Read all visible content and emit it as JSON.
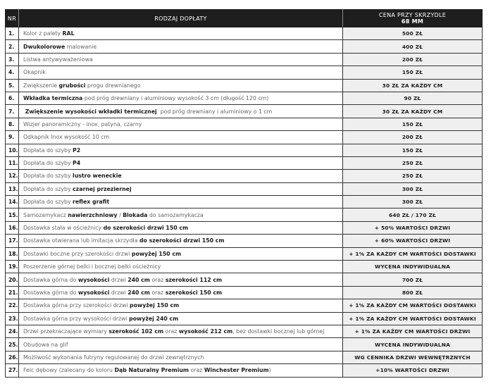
{
  "header": {
    "nr": "NR",
    "type": "RODZAJ DOPŁATY",
    "price_line1": "CENA PRZY SKRZYDLE",
    "price_line2": "68 MM"
  },
  "rows": [
    {
      "nr": "1.",
      "desc": [
        {
          "t": "Kolor z palety "
        },
        {
          "t": "RAL",
          "b": true
        }
      ],
      "price": "500 ZŁ"
    },
    {
      "nr": "2.",
      "desc": [
        {
          "t": "Dwukolorowe",
          "b": true
        },
        {
          "t": " malowanie"
        }
      ],
      "price": "400 ZŁ"
    },
    {
      "nr": "3.",
      "desc": [
        {
          "t": "Listwa antywyważeniowa"
        }
      ],
      "price": "200 ZŁ"
    },
    {
      "nr": "4.",
      "desc": [
        {
          "t": "Okapnik"
        }
      ],
      "price": "150 ZŁ"
    },
    {
      "nr": "5.",
      "desc": [
        {
          "t": "Zwiększenie "
        },
        {
          "t": "grubości",
          "b": true
        },
        {
          "t": " progu drewnianego"
        }
      ],
      "price": "30 ZŁ ZA KAŻDY CM"
    },
    {
      "nr": "6.",
      "desc": [
        {
          "t": "Wkładka termiczna",
          "b": true
        },
        {
          "t": " pod próg drewniany i aluminiowy wysokość 3 cm (długość 120 cm)"
        }
      ],
      "price": "90 ZŁ"
    },
    {
      "nr": "7.",
      "desc": [
        {
          "t": " Zwiększenie wysokości wkładki termicznej",
          "b": true
        },
        {
          "t": "  pod próg drewniany i aluminiowy o 1 cm"
        }
      ],
      "price": "30 ZŁ ZA KAŻDY CM"
    },
    {
      "nr": "8.",
      "desc": [
        {
          "t": "Wizjer panoramiczny - inox, patyna, czarny"
        }
      ],
      "price": "150 ZŁ"
    },
    {
      "nr": "9.",
      "desc": [
        {
          "t": "Odkapnik Inox wysokość 10 cm"
        }
      ],
      "price": "200 ZŁ"
    },
    {
      "nr": "10.",
      "desc": [
        {
          "t": "Dopłata do szyby "
        },
        {
          "t": "P2",
          "b": true
        }
      ],
      "price": "150 ZŁ"
    },
    {
      "nr": "11.",
      "desc": [
        {
          "t": "Dopłata do szyby "
        },
        {
          "t": "P4",
          "b": true
        }
      ],
      "price": "250 ZŁ"
    },
    {
      "nr": "12.",
      "desc": [
        {
          "t": "Dopłata do szyby "
        },
        {
          "t": "lustro weneckie",
          "b": true
        }
      ],
      "price": "250 ZŁ"
    },
    {
      "nr": "13.",
      "desc": [
        {
          "t": "Dopłata do szyby "
        },
        {
          "t": "czarnej przeziernej",
          "b": true
        }
      ],
      "price": "300 ZŁ"
    },
    {
      "nr": "14.",
      "desc": [
        {
          "t": "Dopłata do szyby "
        },
        {
          "t": "reflex grafit",
          "b": true
        }
      ],
      "price": "300 ZŁ"
    },
    {
      "nr": "15.",
      "desc": [
        {
          "t": "Samozamykacz "
        },
        {
          "t": "nawierzchniowy",
          "b": true
        },
        {
          "t": " / "
        },
        {
          "t": "Blokada",
          "b": true
        },
        {
          "t": " do samozamykacza"
        }
      ],
      "price": "640 ZŁ / 170 ZŁ"
    },
    {
      "nr": "16.",
      "desc": [
        {
          "t": "Dostawka stała w ościeżnicy "
        },
        {
          "t": "do szerokości drzwi 150 cm",
          "b": true
        }
      ],
      "price": "+ 50% WARTOŚCI DRZWI"
    },
    {
      "nr": "17.",
      "desc": [
        {
          "t": "Dostawka otwierana lub imitacja skrzydła "
        },
        {
          "t": "do szerokości drzwi 150 cm",
          "b": true
        }
      ],
      "price": "+ 60% WARTOŚCI DRZWI"
    },
    {
      "nr": "18.",
      "desc": [
        {
          "t": "Dostawki boczne przy szerokości drzwi "
        },
        {
          "t": "powyżej 150 cm",
          "b": true
        }
      ],
      "price": "+ 1% ZA KAŻDY CM WARTOŚCI DOSTAWKI"
    },
    {
      "nr": "19.",
      "desc": [
        {
          "t": "Poszerzenie górnej belki i bocznej belki ościeżnicy"
        }
      ],
      "price": "WYCENA INDYWIDUALNA"
    },
    {
      "nr": "20.",
      "desc": [
        {
          "t": "Dostawka górna do "
        },
        {
          "t": "wysokości",
          "b": true
        },
        {
          "t": " drzwi "
        },
        {
          "t": "240 cm",
          "b": true
        },
        {
          "t": " oraz "
        },
        {
          "t": "szerokości 112 cm",
          "b": true
        }
      ],
      "price": "700 ZŁ"
    },
    {
      "nr": "21.",
      "desc": [
        {
          "t": "Dostawka górna do "
        },
        {
          "t": "wysokości",
          "b": true
        },
        {
          "t": " drzwi "
        },
        {
          "t": "240 cm",
          "b": true
        },
        {
          "t": " oraz "
        },
        {
          "t": "szerokości 150 cm",
          "b": true
        }
      ],
      "price": "800 ZŁ"
    },
    {
      "nr": "22.",
      "desc": [
        {
          "t": "Dostawka górna przy szerokości drzwi "
        },
        {
          "t": "powyżej 150 cm",
          "b": true
        }
      ],
      "price": "+ 1% ZA KAŻDY CM WARTOŚCI DOSTAWKI"
    },
    {
      "nr": "23.",
      "desc": [
        {
          "t": "Dostawka górna przy wysokości drzwi "
        },
        {
          "t": "powyżej 240 cm",
          "b": true
        }
      ],
      "price": "+ 1% ZA KAŻDY CM WARTOŚCI DOSTAWKI"
    },
    {
      "nr": "24.",
      "desc": [
        {
          "t": "Drzwi przekraczające wymiary "
        },
        {
          "t": "szerokość 102 cm",
          "b": true
        },
        {
          "t": " oraz "
        },
        {
          "t": "wysokość 212 cm",
          "b": true
        },
        {
          "t": ", bez dostawki bocznej lub górnej"
        }
      ],
      "price": "+ 1% ZA KAŻDY CM WARTOŚCI DRZWI"
    },
    {
      "nr": "25.",
      "desc": [
        {
          "t": "Obudowa na glif"
        }
      ],
      "price": "WYCENA INDYWIDUALNA"
    },
    {
      "nr": "26.",
      "desc": [
        {
          "t": "Możliwość wykonania futryny regulowanej do drzwi zewnętrznych"
        }
      ],
      "price": "WG CENNIKA DRZWI WEWNĘTRZNYCH"
    },
    {
      "nr": "27.",
      "desc": [
        {
          "t": "Felc dębowy (zalecany do koloru "
        },
        {
          "t": "Dąb Naturalny Premium",
          "b": true
        },
        {
          "t": " oraz "
        },
        {
          "t": "Winchester Premium",
          "b": true
        },
        {
          "t": ")"
        }
      ],
      "price": "+10% WARTOŚCI DRZWI"
    }
  ]
}
